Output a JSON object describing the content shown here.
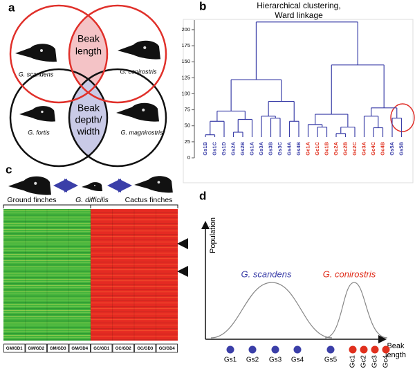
{
  "panel_a": {
    "label": "a",
    "species": [
      "G. scandens",
      "G. conirostris",
      "G. fortis",
      "G. magnirostris"
    ],
    "top_trait": [
      "Beak",
      "length"
    ],
    "bottom_trait": [
      "Beak",
      "depth/",
      "width"
    ]
  },
  "panel_b": {
    "label": "b",
    "title": [
      "Hierarchical clustering,",
      "Ward linkage"
    ],
    "ylim": [
      0,
      215
    ],
    "yticks": [
      0,
      25,
      50,
      75,
      100,
      125,
      150,
      175,
      200
    ],
    "line_color": "#3b3fa8",
    "tree": {
      "height": 212,
      "children": [
        {
          "height": 122,
          "children": [
            {
              "height": 73,
              "children": [
                {
                  "height": 57,
                  "children": [
                    {
                      "height": 36,
                      "children": [
                        {
                          "label": "Gs1B",
                          "color": "#3b3fa8"
                        },
                        {
                          "label": "Gs1C",
                          "color": "#3b3fa8"
                        }
                      ]
                    },
                    {
                      "label": "Gs1D",
                      "color": "#3b3fa8"
                    }
                  ]
                },
                {
                  "height": 60,
                  "children": [
                    {
                      "height": 40,
                      "children": [
                        {
                          "label": "Gs2A",
                          "color": "#3b3fa8"
                        },
                        {
                          "label": "Gs2B",
                          "color": "#3b3fa8"
                        }
                      ]
                    },
                    {
                      "label": "Gs1A",
                      "color": "#3b3fa8"
                    }
                  ]
                }
              ]
            },
            {
              "height": 88,
              "children": [
                {
                  "height": 65,
                  "children": [
                    {
                      "label": "Gs3A",
                      "color": "#3b3fa8"
                    },
                    {
                      "height": 62,
                      "children": [
                        {
                          "label": "Gs3B",
                          "color": "#3b3fa8"
                        },
                        {
                          "label": "Gs3C",
                          "color": "#3b3fa8"
                        }
                      ]
                    }
                  ]
                },
                {
                  "height": 57,
                  "children": [
                    {
                      "label": "Gs4A",
                      "color": "#3b3fa8"
                    },
                    {
                      "label": "Gs4B",
                      "color": "#3b3fa8"
                    }
                  ]
                }
              ]
            }
          ]
        },
        {
          "height": 145,
          "children": [
            {
              "height": 68,
              "children": [
                {
                  "height": 52,
                  "children": [
                    {
                      "label": "Gc1A",
                      "color": "#e0301e"
                    },
                    {
                      "height": 48,
                      "children": [
                        {
                          "label": "Gc1C",
                          "color": "#e0301e"
                        },
                        {
                          "label": "Gc1B",
                          "color": "#e0301e"
                        }
                      ]
                    }
                  ]
                },
                {
                  "height": 48,
                  "children": [
                    {
                      "height": 38,
                      "children": [
                        {
                          "label": "Gc2A",
                          "color": "#e0301e"
                        },
                        {
                          "label": "Gc2B",
                          "color": "#e0301e"
                        }
                      ]
                    },
                    {
                      "label": "Gc2C",
                      "color": "#e0301e"
                    }
                  ]
                }
              ]
            },
            {
              "height": 78,
              "children": [
                {
                  "height": 65,
                  "children": [
                    {
                      "label": "Gc3A",
                      "color": "#e0301e"
                    },
                    {
                      "height": 47,
                      "children": [
                        {
                          "label": "Gc4C",
                          "color": "#e0301e"
                        },
                        {
                          "label": "Gc4B",
                          "color": "#e0301e"
                        }
                      ]
                    }
                  ]
                },
                {
                  "height": 62,
                  "children": [
                    {
                      "label": "Gs5A",
                      "color": "#3b3fa8"
                    },
                    {
                      "label": "Gs5B",
                      "color": "#3b3fa8"
                    }
                  ]
                }
              ]
            }
          ]
        }
      ]
    }
  },
  "panel_c": {
    "label": "c",
    "groups": [
      "Ground finches",
      "G. difficilis",
      "Cactus finches"
    ],
    "columns": [
      "GM/GD1",
      "GM/GD2",
      "GM/GD3",
      "GM/GD4",
      "GC/GD1",
      "GC/GD2",
      "GC/GD3",
      "GC/GD4"
    ]
  },
  "panel_d": {
    "label": "d",
    "y_label": "Population",
    "x_label": [
      "Beak",
      "length"
    ],
    "curves": [
      {
        "name": "G. scandens",
        "color": "#3b3fa8"
      },
      {
        "name": "G. conirostris",
        "color": "#e0301e"
      }
    ],
    "point_groups": [
      {
        "color": "#3b3fa8",
        "labels": [
          "Gs1",
          "Gs2",
          "Gs3",
          "Gs4",
          "Gs5"
        ]
      },
      {
        "color": "#e0301e",
        "labels": [
          "Gc1",
          "Gc2",
          "Gc3",
          "Gc4"
        ]
      }
    ]
  }
}
